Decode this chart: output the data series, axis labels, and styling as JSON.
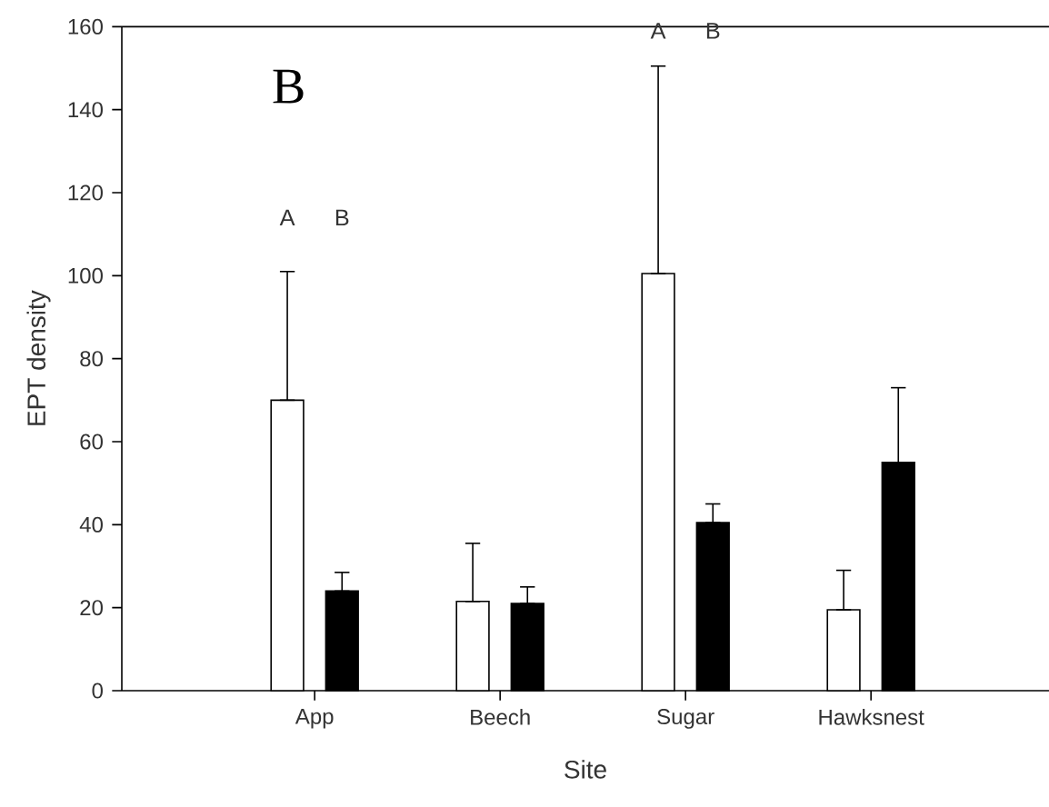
{
  "chart_data": {
    "type": "bar",
    "xlabel": "Site",
    "ylabel": "EPT density",
    "categories": [
      "App",
      "Beech",
      "Sugar",
      "Hawksnest"
    ],
    "series": [
      {
        "color": "#ffffff",
        "values": [
          70,
          21.5,
          100.5,
          19.5
        ],
        "errors": [
          [
            70,
            101
          ],
          [
            21.5,
            35.5
          ],
          [
            100.5,
            150.5
          ],
          [
            19.5,
            29
          ]
        ]
      },
      {
        "color": "#000000",
        "values": [
          24,
          21,
          40.5,
          55
        ],
        "errors": [
          [
            24,
            28.5
          ],
          [
            21,
            25
          ],
          [
            40.5,
            45
          ],
          [
            55,
            73
          ]
        ]
      }
    ],
    "ylim": [
      0,
      160
    ],
    "yticks": [
      0,
      20,
      40,
      60,
      80,
      100,
      120,
      140,
      160
    ],
    "annotations": [
      "B",
      "A",
      "B",
      "A",
      "B"
    ]
  }
}
